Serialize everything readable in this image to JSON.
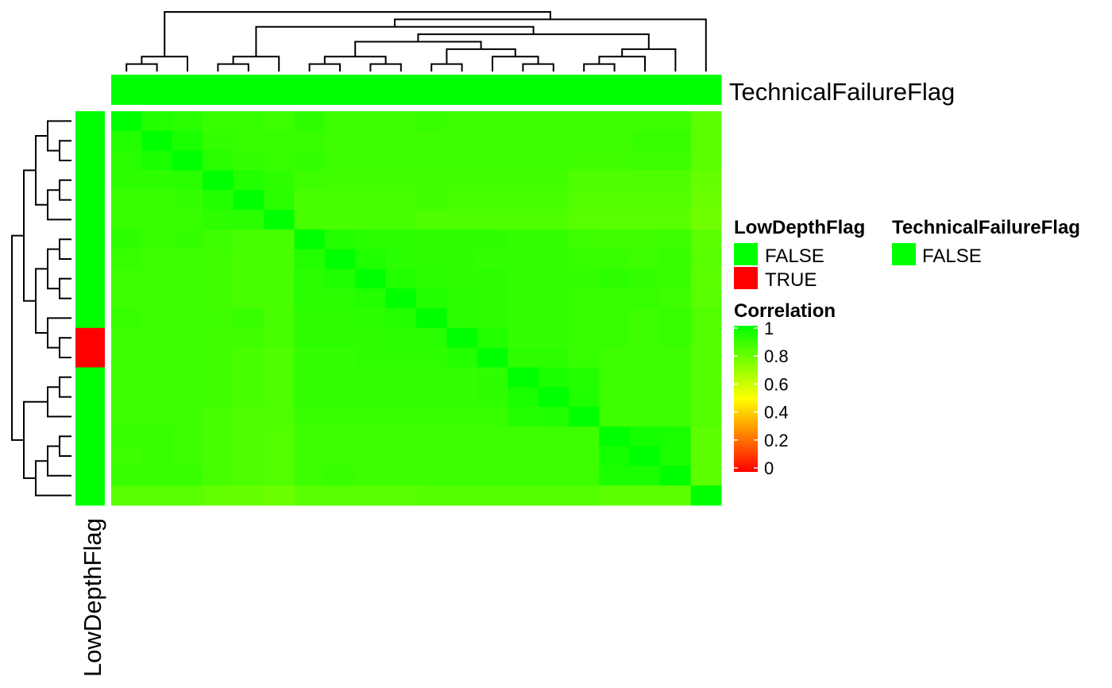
{
  "chart_data": {
    "type": "heatmap",
    "title": "",
    "n": 20,
    "matrix": [
      [
        1.0,
        0.93,
        0.92,
        0.89,
        0.89,
        0.88,
        0.91,
        0.88,
        0.88,
        0.88,
        0.89,
        0.88,
        0.88,
        0.88,
        0.88,
        0.88,
        0.88,
        0.88,
        0.88,
        0.82
      ],
      [
        0.93,
        1.0,
        0.95,
        0.9,
        0.89,
        0.89,
        0.89,
        0.88,
        0.88,
        0.88,
        0.88,
        0.88,
        0.88,
        0.88,
        0.88,
        0.88,
        0.88,
        0.89,
        0.89,
        0.82
      ],
      [
        0.92,
        0.95,
        1.0,
        0.92,
        0.9,
        0.89,
        0.9,
        0.88,
        0.88,
        0.88,
        0.88,
        0.88,
        0.88,
        0.88,
        0.88,
        0.87,
        0.87,
        0.88,
        0.88,
        0.82
      ],
      [
        0.91,
        0.91,
        0.92,
        1.0,
        0.93,
        0.91,
        0.88,
        0.87,
        0.87,
        0.87,
        0.87,
        0.87,
        0.87,
        0.87,
        0.87,
        0.85,
        0.85,
        0.85,
        0.85,
        0.8
      ],
      [
        0.89,
        0.89,
        0.9,
        0.93,
        1.0,
        0.92,
        0.86,
        0.86,
        0.86,
        0.86,
        0.87,
        0.86,
        0.86,
        0.86,
        0.86,
        0.84,
        0.84,
        0.84,
        0.84,
        0.79
      ],
      [
        0.89,
        0.89,
        0.89,
        0.91,
        0.92,
        1.0,
        0.86,
        0.86,
        0.86,
        0.86,
        0.85,
        0.85,
        0.85,
        0.85,
        0.85,
        0.83,
        0.83,
        0.83,
        0.83,
        0.78
      ],
      [
        0.91,
        0.89,
        0.9,
        0.88,
        0.86,
        0.86,
        1.0,
        0.93,
        0.92,
        0.92,
        0.91,
        0.91,
        0.91,
        0.9,
        0.9,
        0.88,
        0.87,
        0.87,
        0.88,
        0.82
      ],
      [
        0.89,
        0.88,
        0.88,
        0.87,
        0.86,
        0.86,
        0.93,
        1.0,
        0.94,
        0.92,
        0.91,
        0.91,
        0.9,
        0.9,
        0.9,
        0.89,
        0.89,
        0.88,
        0.89,
        0.83
      ],
      [
        0.88,
        0.88,
        0.88,
        0.87,
        0.86,
        0.86,
        0.92,
        0.94,
        1.0,
        0.93,
        0.92,
        0.91,
        0.91,
        0.9,
        0.9,
        0.9,
        0.91,
        0.9,
        0.89,
        0.82
      ],
      [
        0.88,
        0.88,
        0.88,
        0.87,
        0.86,
        0.86,
        0.92,
        0.92,
        0.93,
        1.0,
        0.93,
        0.92,
        0.91,
        0.9,
        0.9,
        0.89,
        0.89,
        0.89,
        0.88,
        0.83
      ],
      [
        0.89,
        0.88,
        0.88,
        0.88,
        0.89,
        0.86,
        0.91,
        0.91,
        0.92,
        0.93,
        1.0,
        0.92,
        0.91,
        0.9,
        0.9,
        0.89,
        0.89,
        0.88,
        0.89,
        0.84
      ],
      [
        0.88,
        0.88,
        0.88,
        0.87,
        0.87,
        0.86,
        0.91,
        0.91,
        0.91,
        0.92,
        0.92,
        1.0,
        0.93,
        0.9,
        0.9,
        0.89,
        0.89,
        0.88,
        0.89,
        0.84
      ],
      [
        0.88,
        0.88,
        0.88,
        0.87,
        0.86,
        0.85,
        0.9,
        0.9,
        0.91,
        0.91,
        0.91,
        0.93,
        1.0,
        0.91,
        0.91,
        0.89,
        0.88,
        0.88,
        0.88,
        0.84
      ],
      [
        0.88,
        0.88,
        0.88,
        0.87,
        0.86,
        0.85,
        0.9,
        0.9,
        0.9,
        0.9,
        0.9,
        0.9,
        0.91,
        1.0,
        0.95,
        0.93,
        0.88,
        0.88,
        0.88,
        0.84
      ],
      [
        0.88,
        0.88,
        0.88,
        0.87,
        0.86,
        0.85,
        0.9,
        0.9,
        0.9,
        0.9,
        0.9,
        0.9,
        0.91,
        0.95,
        1.0,
        0.94,
        0.88,
        0.88,
        0.88,
        0.84
      ],
      [
        0.88,
        0.88,
        0.88,
        0.86,
        0.85,
        0.85,
        0.89,
        0.89,
        0.89,
        0.89,
        0.89,
        0.89,
        0.89,
        0.93,
        0.94,
        1.0,
        0.88,
        0.88,
        0.88,
        0.84
      ],
      [
        0.89,
        0.89,
        0.88,
        0.86,
        0.85,
        0.84,
        0.88,
        0.88,
        0.88,
        0.88,
        0.88,
        0.88,
        0.88,
        0.88,
        0.88,
        0.88,
        1.0,
        0.96,
        0.95,
        0.82
      ],
      [
        0.88,
        0.89,
        0.88,
        0.86,
        0.85,
        0.84,
        0.88,
        0.88,
        0.88,
        0.88,
        0.88,
        0.88,
        0.88,
        0.88,
        0.88,
        0.88,
        0.96,
        1.0,
        0.95,
        0.82
      ],
      [
        0.89,
        0.89,
        0.89,
        0.86,
        0.85,
        0.84,
        0.88,
        0.89,
        0.88,
        0.88,
        0.88,
        0.88,
        0.88,
        0.88,
        0.88,
        0.88,
        0.95,
        0.95,
        1.0,
        0.82
      ],
      [
        0.83,
        0.83,
        0.83,
        0.81,
        0.8,
        0.79,
        0.83,
        0.83,
        0.83,
        0.83,
        0.84,
        0.84,
        0.84,
        0.84,
        0.84,
        0.84,
        0.82,
        0.82,
        0.82,
        1.0
      ]
    ],
    "row_annotation": {
      "name": "LowDepthFlag",
      "values": [
        "FALSE",
        "FALSE",
        "FALSE",
        "FALSE",
        "FALSE",
        "FALSE",
        "FALSE",
        "FALSE",
        "FALSE",
        "FALSE",
        "FALSE",
        "TRUE",
        "TRUE",
        "FALSE",
        "FALSE",
        "FALSE",
        "FALSE",
        "FALSE",
        "FALSE",
        "FALSE"
      ]
    },
    "column_annotation": {
      "name": "TechnicalFailureFlag",
      "values": [
        "FALSE",
        "FALSE",
        "FALSE",
        "FALSE",
        "FALSE",
        "FALSE",
        "FALSE",
        "FALSE",
        "FALSE",
        "FALSE",
        "FALSE",
        "FALSE",
        "FALSE",
        "FALSE",
        "FALSE",
        "FALSE",
        "FALSE",
        "FALSE",
        "FALSE",
        "FALSE"
      ]
    },
    "legends": {
      "low_depth": {
        "title": "LowDepthFlag",
        "items": [
          {
            "label": "FALSE",
            "color": "#00ff00"
          },
          {
            "label": "TRUE",
            "color": "#ff0000"
          }
        ]
      },
      "technical_failure": {
        "title": "TechnicalFailureFlag",
        "items": [
          {
            "label": "FALSE",
            "color": "#00ff00"
          }
        ]
      },
      "correlation": {
        "title": "Correlation",
        "ticks": [
          "1",
          "0.8",
          "0.6",
          "0.4",
          "0.2",
          "0"
        ],
        "tick_values": [
          1,
          0.8,
          0.6,
          0.4,
          0.2,
          0
        ],
        "colors": {
          "low": "#ff0000",
          "mid": "#ffff00",
          "high": "#00ff00"
        }
      }
    },
    "grid": false
  }
}
